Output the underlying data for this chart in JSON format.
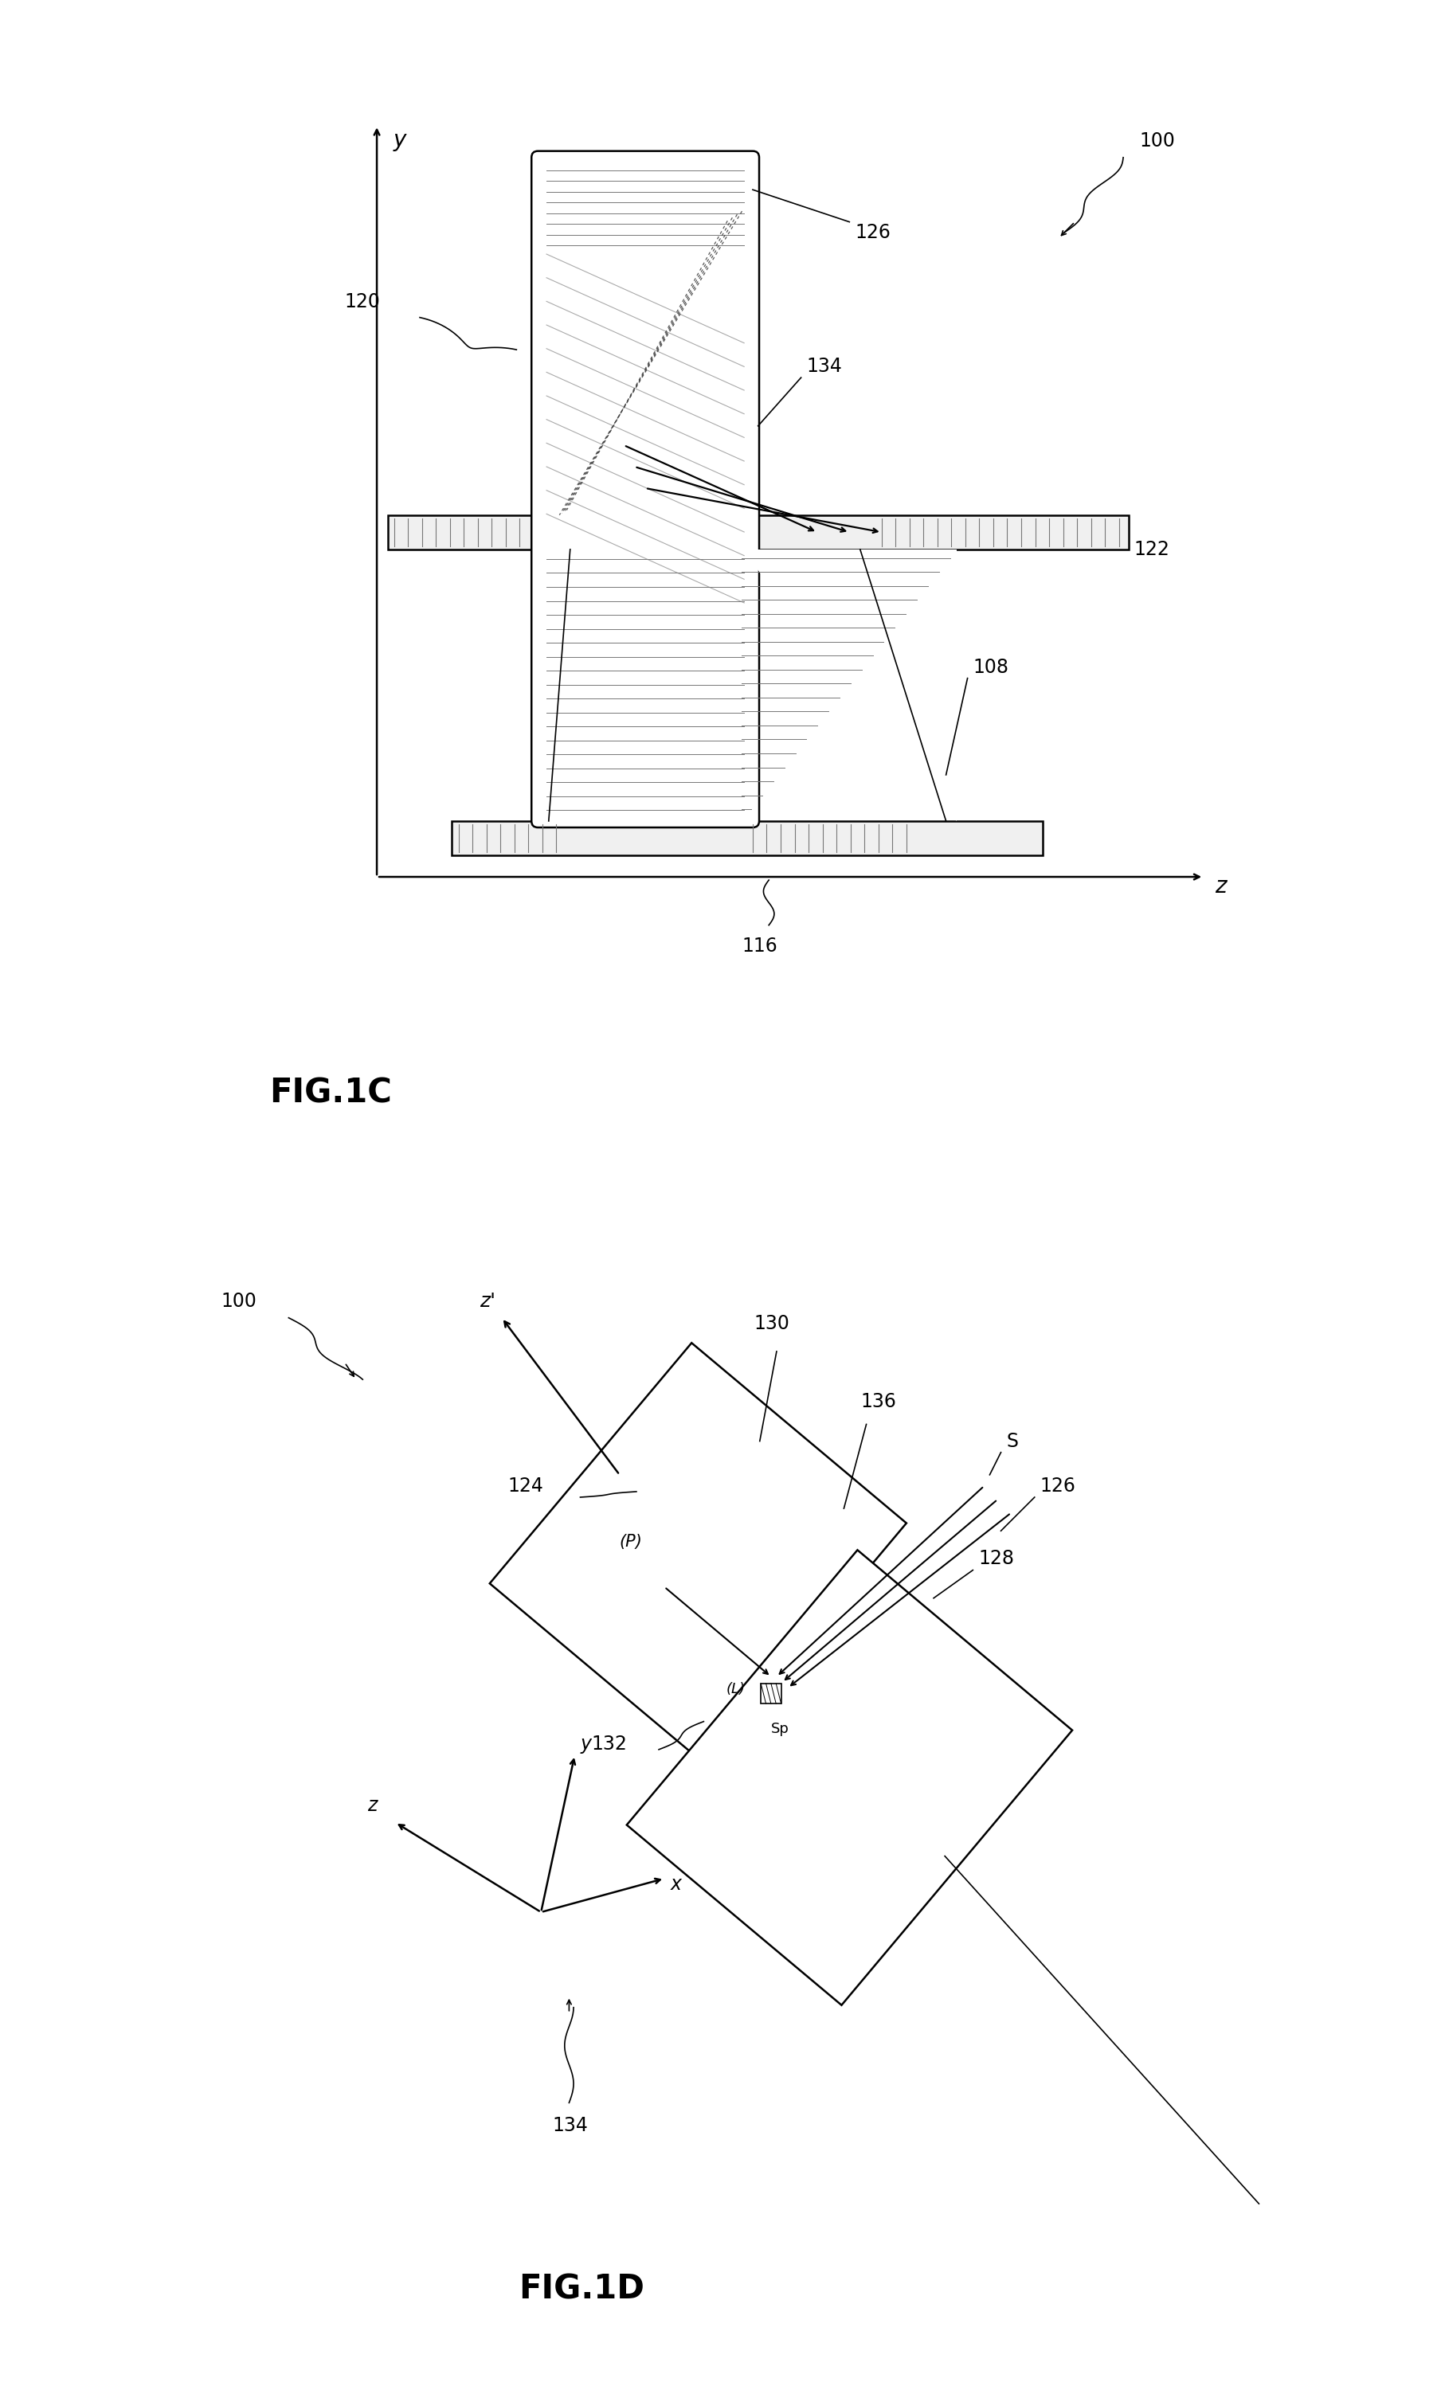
{
  "fig_width": 18.09,
  "fig_height": 29.96,
  "fig1c": {
    "title": "FIG.1C",
    "label_100": "100",
    "label_120": "120",
    "label_122": "122",
    "label_126": "126",
    "label_134": "134",
    "label_108": "108",
    "label_116": "116"
  },
  "fig1d": {
    "title": "FIG.1D",
    "label_100": "100",
    "label_124": "124",
    "label_126": "126",
    "label_128": "128",
    "label_130": "130",
    "label_132": "132",
    "label_134": "134",
    "label_136": "136",
    "label_S": "S",
    "label_P": "(P)",
    "label_L": "(L)",
    "label_Sp": "Sp",
    "label_zprime": "z'"
  }
}
